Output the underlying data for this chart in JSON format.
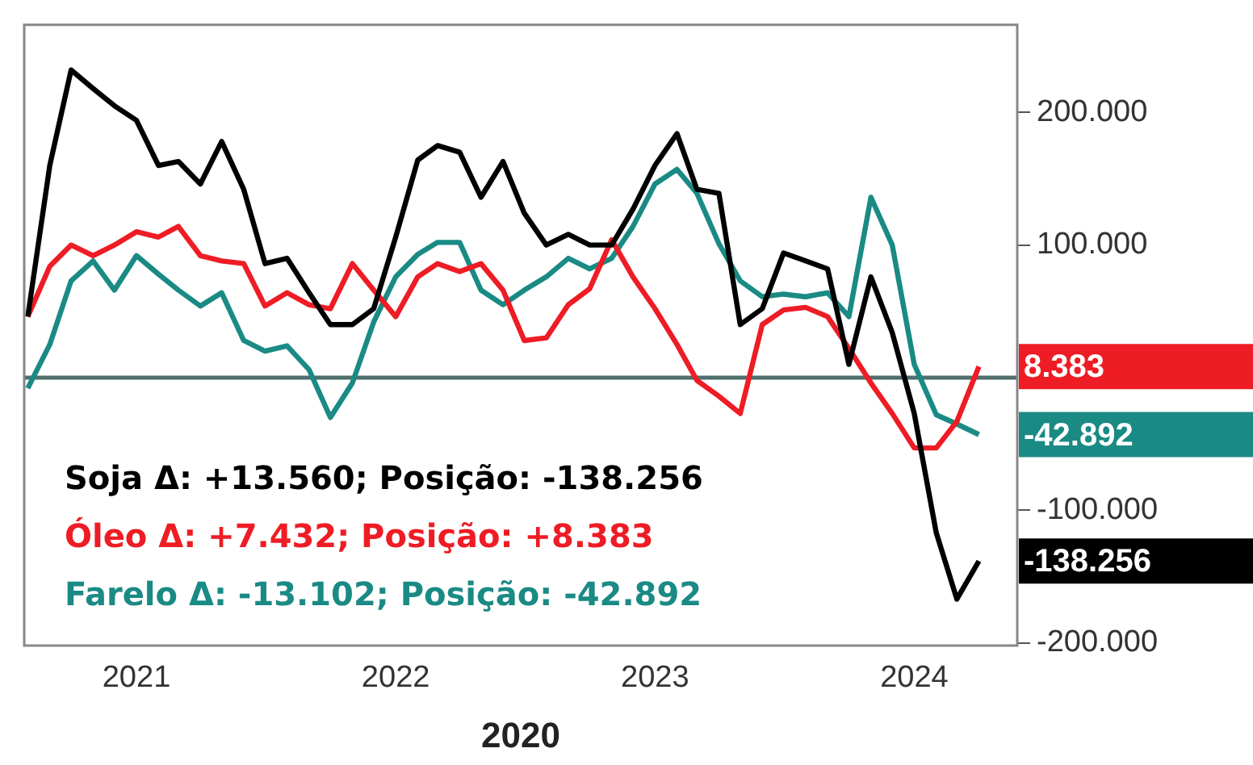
{
  "chart_data": {
    "type": "line",
    "xlabel": "2020",
    "x": [
      "2020-08-01",
      "2020-09-01",
      "2020-10-01",
      "2020-11-01",
      "2020-12-01",
      "2021-01-01",
      "2021-02-01",
      "2021-03-01",
      "2021-04-01",
      "2021-05-01",
      "2021-06-01",
      "2021-07-01",
      "2021-08-01",
      "2021-09-01",
      "2021-10-01",
      "2021-11-01",
      "2021-12-01",
      "2022-01-01",
      "2022-02-01",
      "2022-03-01",
      "2022-04-01",
      "2022-05-01",
      "2022-06-01",
      "2022-07-01",
      "2022-08-01",
      "2022-09-01",
      "2022-10-01",
      "2022-11-01",
      "2022-12-01",
      "2023-01-01",
      "2023-02-01",
      "2023-03-01",
      "2023-04-01",
      "2023-05-01",
      "2023-06-01",
      "2023-07-01",
      "2023-08-01",
      "2023-09-01",
      "2023-10-01",
      "2023-11-01",
      "2023-12-01",
      "2024-01-01",
      "2024-02-01",
      "2024-03-01",
      "2024-04-01"
    ],
    "series": [
      {
        "name": "Soja Δ: +13.560; Posição: -138.256",
        "color": "#000000",
        "values": [
          46000,
          160000,
          232000,
          218000,
          205000,
          194000,
          160000,
          163000,
          146000,
          178000,
          142000,
          86000,
          90000,
          64000,
          40000,
          40000,
          52000,
          106000,
          164000,
          175000,
          170000,
          136000,
          163000,
          124000,
          100000,
          108000,
          100000,
          100000,
          127000,
          160000,
          184000,
          142000,
          139000,
          40000,
          52000,
          94000,
          88000,
          82000,
          10000,
          76000,
          34000,
          -27000,
          -117000,
          -167000,
          -138256
        ],
        "value_labels": [
          null,
          null,
          null,
          null,
          null,
          null,
          null,
          null,
          null,
          null,
          null,
          null,
          null,
          null,
          null,
          null,
          null,
          null,
          null,
          null,
          null,
          null,
          null,
          null,
          null,
          null,
          null,
          null,
          null,
          null,
          null,
          null,
          null,
          null,
          null,
          null,
          null,
          null,
          null,
          null,
          null,
          null,
          null,
          null,
          "-138.256"
        ]
      },
      {
        "name": "Óleo Δ: +7.432; Posição: +8.383",
        "color": "#ee1c25",
        "values": [
          46000,
          84000,
          100000,
          92000,
          100000,
          110000,
          106000,
          114000,
          92000,
          88000,
          86000,
          54000,
          64000,
          55000,
          52000,
          86000,
          66000,
          46000,
          76000,
          86000,
          80000,
          86000,
          66000,
          28000,
          30000,
          55000,
          67000,
          104000,
          76000,
          52000,
          25000,
          -2000,
          -14000,
          -27000,
          40000,
          51000,
          53000,
          46000,
          22000,
          -4000,
          -27000,
          -53000,
          -53000,
          -33000,
          8383
        ],
        "value_labels": [
          null,
          null,
          null,
          null,
          null,
          null,
          null,
          null,
          null,
          null,
          null,
          null,
          null,
          null,
          null,
          null,
          null,
          null,
          null,
          null,
          null,
          null,
          null,
          null,
          null,
          null,
          null,
          null,
          null,
          null,
          null,
          null,
          null,
          null,
          null,
          null,
          null,
          null,
          null,
          null,
          null,
          null,
          null,
          null,
          "8.383"
        ]
      },
      {
        "name": "Farelo Δ: -13.102; Posição: -42.892",
        "color": "#1a8a84",
        "values": [
          -8000,
          25000,
          73000,
          88000,
          66000,
          92000,
          78000,
          66000,
          54000,
          64000,
          28000,
          20000,
          24000,
          6000,
          -30000,
          -4000,
          42000,
          76000,
          93000,
          102000,
          102000,
          66000,
          55000,
          66000,
          76000,
          90000,
          82000,
          90000,
          114000,
          146000,
          157000,
          139000,
          101000,
          73000,
          61000,
          63000,
          61000,
          64000,
          46000,
          136000,
          100000,
          10000,
          -28000,
          -35000,
          -42892
        ],
        "value_labels": [
          null,
          null,
          null,
          null,
          null,
          null,
          null,
          null,
          null,
          null,
          null,
          null,
          null,
          null,
          null,
          null,
          null,
          null,
          null,
          null,
          null,
          null,
          null,
          null,
          null,
          null,
          null,
          null,
          null,
          null,
          null,
          null,
          null,
          null,
          null,
          null,
          null,
          null,
          null,
          null,
          null,
          null,
          null,
          null,
          "-42.892"
        ]
      }
    ],
    "xlim": [
      "2020-07-27",
      "2024-05-25"
    ],
    "xticks": [
      {
        "value": "2021-01-01",
        "label": "2021"
      },
      {
        "value": "2022-01-01",
        "label": "2022"
      },
      {
        "value": "2023-01-01",
        "label": "2023"
      },
      {
        "value": "2024-01-01",
        "label": "2024"
      }
    ],
    "ylim": [
      -202000,
      266000
    ],
    "yticks": [
      {
        "value": 200000,
        "label": "200.000"
      },
      {
        "value": 100000,
        "label": "100.000"
      },
      {
        "value": -100000,
        "label": "-100.000"
      },
      {
        "value": -200000,
        "label": "-200.000"
      }
    ],
    "ref_lines": [
      {
        "axis": "y",
        "value": 0,
        "color": "#4f6e6c"
      }
    ],
    "legend": "bottom left",
    "grid": false,
    "marker": "none",
    "line_style": "solid"
  }
}
